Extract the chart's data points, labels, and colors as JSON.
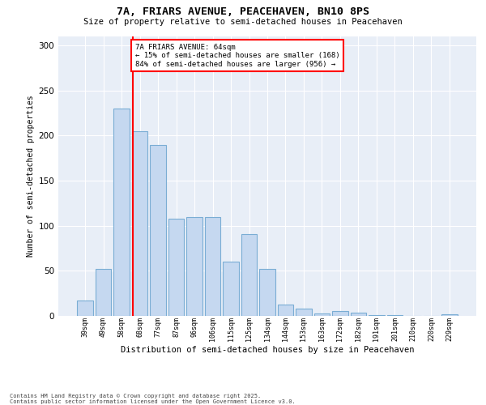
{
  "title_line1": "7A, FRIARS AVENUE, PEACEHAVEN, BN10 8PS",
  "title_line2": "Size of property relative to semi-detached houses in Peacehaven",
  "xlabel": "Distribution of semi-detached houses by size in Peacehaven",
  "ylabel": "Number of semi-detached properties",
  "categories": [
    "39sqm",
    "49sqm",
    "58sqm",
    "68sqm",
    "77sqm",
    "87sqm",
    "96sqm",
    "106sqm",
    "115sqm",
    "125sqm",
    "134sqm",
    "144sqm",
    "153sqm",
    "163sqm",
    "172sqm",
    "182sqm",
    "191sqm",
    "201sqm",
    "210sqm",
    "220sqm",
    "229sqm"
  ],
  "values": [
    17,
    52,
    230,
    205,
    190,
    108,
    110,
    110,
    60,
    91,
    52,
    13,
    8,
    3,
    5,
    4,
    1,
    1,
    0,
    0,
    2
  ],
  "bar_color": "#c5d8f0",
  "bar_edge_color": "#7aadd4",
  "red_line_label": "7A FRIARS AVENUE: 64sqm",
  "pct_smaller": "15% of semi-detached houses are smaller (168)",
  "pct_larger": "84% of semi-detached houses are larger (956)",
  "ylim_max": 310,
  "yticks": [
    0,
    50,
    100,
    150,
    200,
    250,
    300
  ],
  "plot_bg": "#e8eef7",
  "footer_line1": "Contains HM Land Registry data © Crown copyright and database right 2025.",
  "footer_line2": "Contains public sector information licensed under the Open Government Licence v3.0."
}
